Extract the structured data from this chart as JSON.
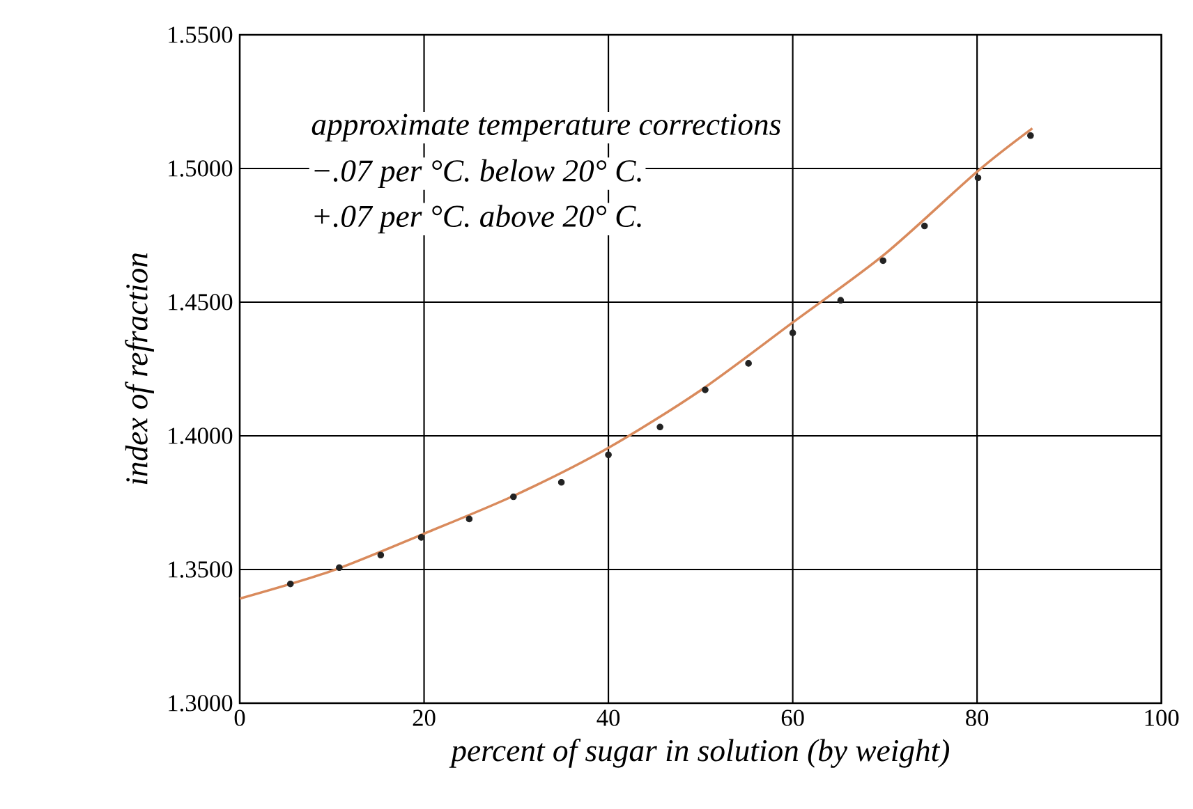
{
  "chart_data": {
    "type": "scatter",
    "xlabel": "percent of sugar in solution (by weight)",
    "ylabel": "index of refraction",
    "annotations": [
      "approximate temperature corrections",
      "−.07 per °C. below 20° C.",
      "+.07 per °C. above 20° C."
    ],
    "xlim": [
      0,
      100
    ],
    "xticks": [
      0,
      20,
      40,
      60,
      80,
      100
    ],
    "ylim": [
      1.3,
      1.55
    ],
    "yticks": [
      {
        "value": 1.3,
        "label": "1.3000"
      },
      {
        "value": 1.35,
        "label": "1.3500"
      },
      {
        "value": 1.4,
        "label": "1.4000"
      },
      {
        "value": 1.45,
        "label": "1.4500"
      },
      {
        "value": 1.5,
        "label": "1.5000"
      },
      {
        "value": 1.55,
        "label": "1.5500"
      }
    ],
    "grid": true,
    "series": [
      {
        "marker": "circle",
        "color": "#222222",
        "x": [
          5.5,
          10.8,
          15.3,
          19.7,
          24.9,
          29.7,
          34.9,
          40.0,
          45.6,
          50.5,
          55.2,
          60.0,
          65.2,
          69.8,
          74.3,
          80.1,
          85.8
        ],
        "values": [
          1.3446,
          1.3507,
          1.3554,
          1.362,
          1.3689,
          1.3772,
          1.3826,
          1.3929,
          1.4033,
          1.4172,
          1.4271,
          1.4385,
          1.4507,
          1.4655,
          1.4785,
          1.4965,
          1.5123
        ]
      },
      {
        "type": "line",
        "color": "#d98a5c",
        "x": [
          0,
          10,
          20,
          30,
          40,
          50,
          60,
          70,
          80,
          86
        ],
        "values": [
          1.3391,
          1.3495,
          1.3634,
          1.378,
          1.3955,
          1.417,
          1.4424,
          1.468,
          1.4988,
          1.515
        ]
      }
    ]
  }
}
